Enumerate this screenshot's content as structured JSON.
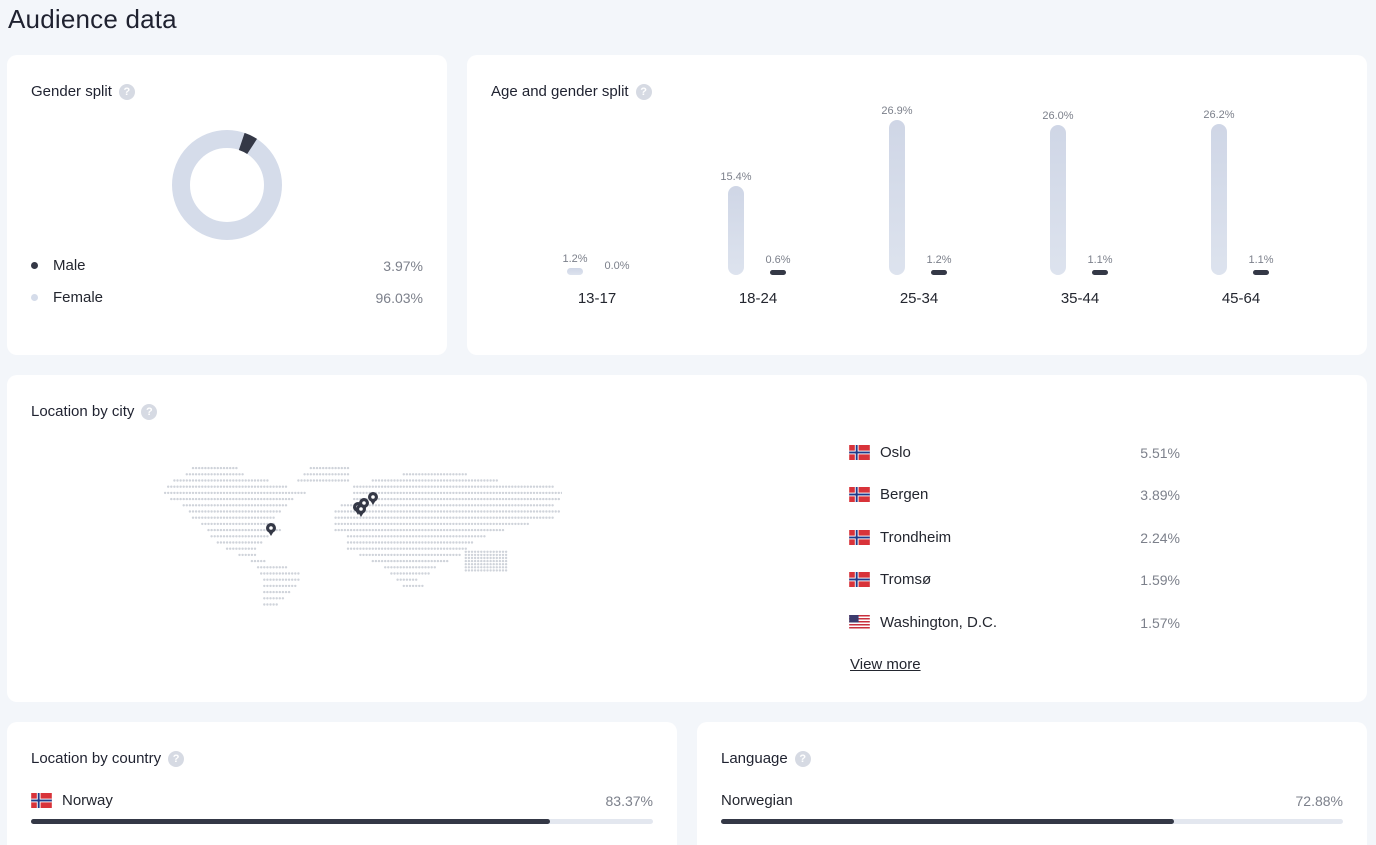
{
  "page": {
    "title": "Audience data"
  },
  "colors": {
    "dark": "#343846",
    "light": "#d5dcea",
    "accent_red": "#d8333a",
    "norway_blue": "#1f3a8a"
  },
  "gender": {
    "title": "Gender split",
    "help_icon": "help-icon",
    "items": [
      {
        "label": "Male",
        "value": "3.97%",
        "share": 3.97,
        "color": "#343846"
      },
      {
        "label": "Female",
        "value": "96.03%",
        "share": 96.03,
        "color": "#d5dcea"
      }
    ]
  },
  "age": {
    "title": "Age and gender split",
    "help_icon": "help-icon",
    "groups": [
      {
        "label": "13-17",
        "female": 1.2,
        "female_label": "1.2%",
        "male": 0.0,
        "male_label": "0.0%"
      },
      {
        "label": "18-24",
        "female": 15.4,
        "female_label": "15.4%",
        "male": 0.6,
        "male_label": "0.6%"
      },
      {
        "label": "25-34",
        "female": 26.9,
        "female_label": "26.9%",
        "male": 1.2,
        "male_label": "1.2%"
      },
      {
        "label": "35-44",
        "female": 26.0,
        "female_label": "26.0%",
        "male": 1.1,
        "male_label": "1.1%"
      },
      {
        "label": "45-64",
        "female": 26.2,
        "female_label": "26.2%",
        "male": 1.1,
        "male_label": "1.1%"
      }
    ]
  },
  "city": {
    "title": "Location by city",
    "help_icon": "help-icon",
    "map_icon": "world-map",
    "items": [
      {
        "name": "Oslo",
        "value": "5.51%",
        "flag": "norway-flag-icon"
      },
      {
        "name": "Bergen",
        "value": "3.89%",
        "flag": "norway-flag-icon"
      },
      {
        "name": "Trondheim",
        "value": "2.24%",
        "flag": "norway-flag-icon"
      },
      {
        "name": "Tromsø",
        "value": "1.59%",
        "flag": "norway-flag-icon"
      },
      {
        "name": "Washington, D.C.",
        "value": "1.57%",
        "flag": "usa-flag-icon"
      }
    ],
    "view_more": "View more"
  },
  "country": {
    "title": "Location by country",
    "help_icon": "help-icon",
    "items": [
      {
        "name": "Norway",
        "value": "83.37%",
        "share": 83.37,
        "flag": "norway-flag-icon"
      }
    ]
  },
  "language": {
    "title": "Language",
    "help_icon": "help-icon",
    "items": [
      {
        "name": "Norwegian",
        "value": "72.88%",
        "share": 72.88
      }
    ]
  }
}
